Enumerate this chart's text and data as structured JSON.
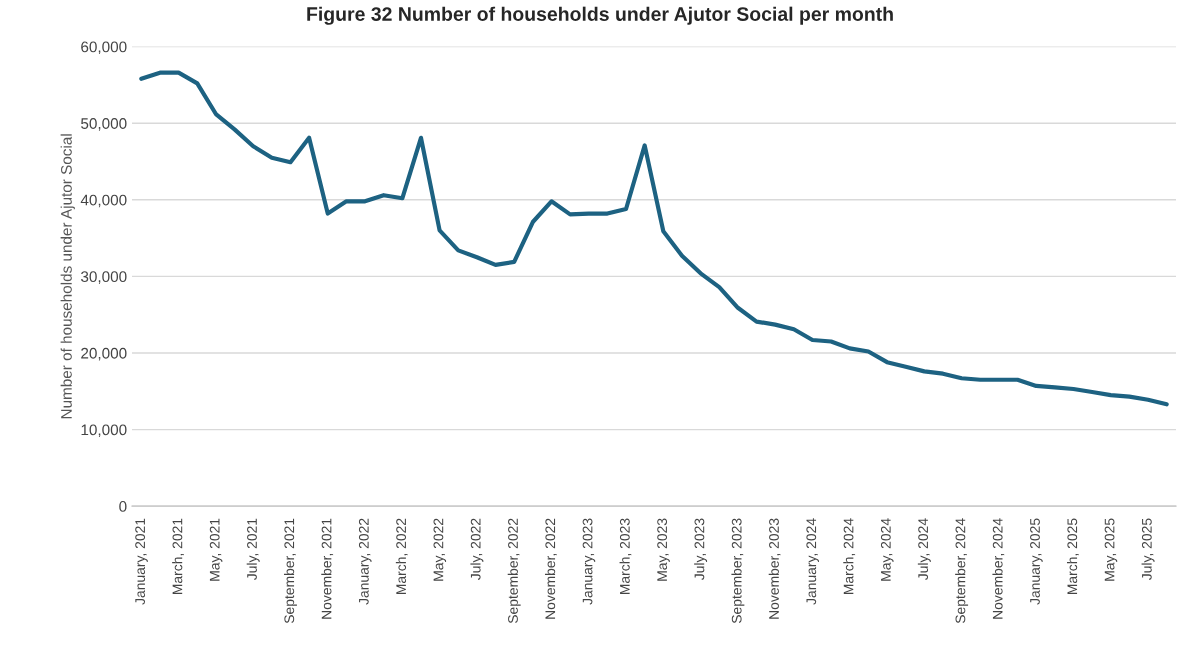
{
  "chart_data": {
    "type": "line",
    "title": "Figure 32 Number of households under Ajutor Social per month",
    "ylabel": "Number of households under Ajutor Social",
    "categories": [
      "January, 2021",
      null,
      "March, 2021",
      null,
      "May, 2021",
      null,
      "July, 2021",
      null,
      "September, 2021",
      null,
      "November, 2021",
      null,
      "January, 2022",
      null,
      "March, 2022",
      null,
      "May, 2022",
      null,
      "July, 2022",
      null,
      "September, 2022",
      null,
      "November, 2022",
      null,
      "January, 2023",
      null,
      "March, 2023",
      null,
      "May, 2023",
      null,
      "July, 2023",
      null,
      "September, 2023",
      null,
      "November, 2023",
      null,
      "January, 2024",
      null,
      "March, 2024",
      null,
      "May, 2024",
      null,
      "July, 2024",
      null,
      "September, 2024",
      null,
      "November, 2024",
      null,
      "January, 2025",
      null,
      "March, 2025",
      null,
      "May, 2025",
      null,
      "July, 2025",
      null
    ],
    "series": [
      {
        "color": "#1d6282",
        "values": [
          55800,
          56600,
          56600,
          55200,
          51200,
          49200,
          47000,
          45500,
          44900,
          48100,
          38200,
          39800,
          39800,
          40600,
          40200,
          48100,
          36000,
          33400,
          32500,
          31500,
          31900,
          37100,
          39800,
          38100,
          38200,
          38200,
          38800,
          47100,
          35900,
          32700,
          30400,
          28600,
          25900,
          24100,
          23700,
          23100,
          21700,
          21500,
          20600,
          20200,
          18800,
          18200,
          17600,
          17300,
          16700,
          16500,
          16500,
          16500,
          15700,
          15500,
          15300,
          14900,
          14500,
          14300,
          13900,
          13300
        ]
      }
    ],
    "ylim": [
      0,
      60000
    ],
    "yticks": [
      {
        "value": 0,
        "label": "0"
      },
      {
        "value": 10000,
        "label": "10,000"
      },
      {
        "value": 20000,
        "label": "20,000"
      },
      {
        "value": 30000,
        "label": "30,000"
      },
      {
        "value": 40000,
        "label": "40,000"
      },
      {
        "value": 50000,
        "label": "50,000"
      },
      {
        "value": 60000,
        "label": "60,000"
      }
    ],
    "grid": "y",
    "legend": false,
    "marker": "none",
    "line_style": "solid"
  }
}
